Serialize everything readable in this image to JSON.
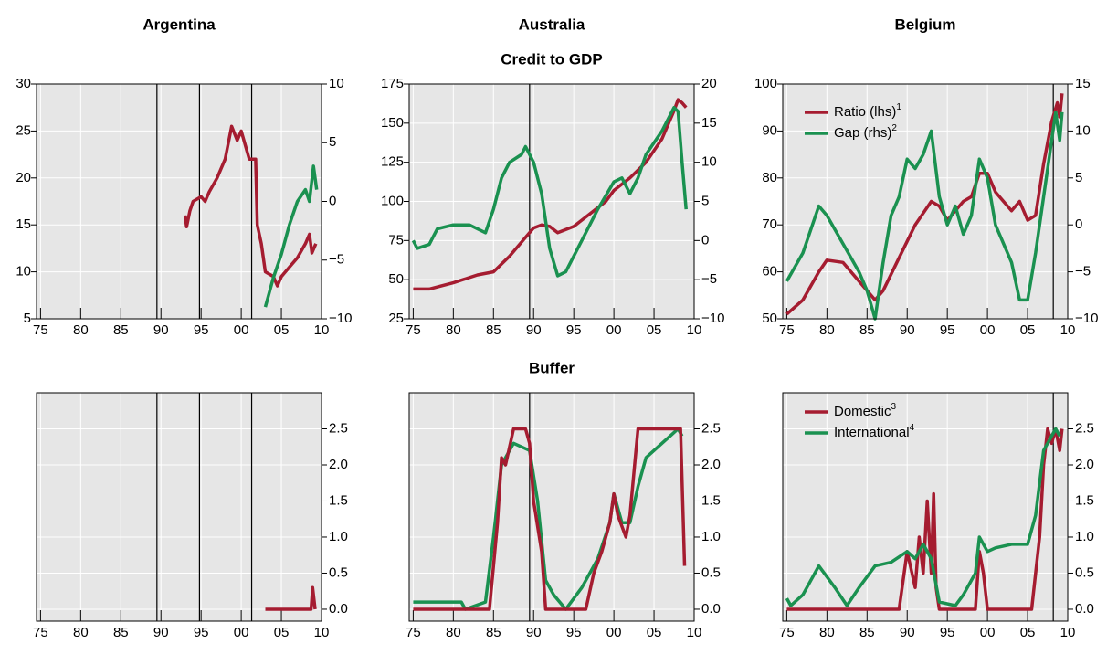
{
  "chart_data": [
    {
      "type": "line",
      "title": "Argentina",
      "xlim": [
        1974.5,
        2010
      ],
      "xticks": [
        {
          "value": 1975,
          "label": "75"
        },
        {
          "value": 1980,
          "label": "80"
        },
        {
          "value": 1985,
          "label": "85"
        },
        {
          "value": 1990,
          "label": "90"
        },
        {
          "value": 1995,
          "label": "95"
        },
        {
          "value": 2000,
          "label": "00"
        },
        {
          "value": 2005,
          "label": "05"
        },
        {
          "value": 2010,
          "label": "10"
        }
      ],
      "ylim": [
        5,
        30
      ],
      "yticks": [
        5,
        10,
        15,
        20,
        25,
        30
      ],
      "y2lim": [
        -10,
        10
      ],
      "y2ticks": [
        {
          "value": -10,
          "label": "−10"
        },
        {
          "value": -5,
          "label": "−5"
        },
        0,
        5,
        10
      ],
      "vlines": [
        1989.5,
        1994.8,
        2001.3
      ],
      "series": [
        {
          "color": "#a51c30",
          "x": [
            1993,
            1993.2,
            1993.6,
            1994,
            1995,
            1995.5,
            1996,
            1997,
            1998,
            1998.8,
            1999.5,
            2000,
            2001,
            2001.8,
            2002,
            2002.5,
            2003,
            2004,
            2004.5,
            2005,
            2006,
            2007,
            2008,
            2008.5,
            2008.8,
            2009.3
          ],
          "values": [
            16,
            14.8,
            16.5,
            17.5,
            18,
            17.5,
            18.5,
            20,
            22,
            25.5,
            24,
            25,
            22,
            22,
            15,
            13,
            10,
            9.5,
            8.5,
            9.5,
            10.5,
            11.5,
            13,
            14,
            12,
            13
          ]
        },
        {
          "color": "#1a9150",
          "axis": "y2",
          "x": [
            2003,
            2004,
            2005,
            2006,
            2007,
            2008,
            2008.5,
            2009,
            2009.4
          ],
          "values": [
            -9,
            -6.5,
            -4.5,
            -2,
            0,
            1,
            0,
            3,
            1
          ]
        }
      ]
    },
    {
      "type": "line",
      "title": "Australia",
      "section": "Credit to GDP",
      "xlim": [
        1974.5,
        2010
      ],
      "xticks": [
        {
          "value": 1975,
          "label": "75"
        },
        {
          "value": 1980,
          "label": "80"
        },
        {
          "value": 1985,
          "label": "85"
        },
        {
          "value": 1990,
          "label": "90"
        },
        {
          "value": 1995,
          "label": "95"
        },
        {
          "value": 2000,
          "label": "00"
        },
        {
          "value": 2005,
          "label": "05"
        },
        {
          "value": 2010,
          "label": "10"
        }
      ],
      "ylim": [
        25,
        175
      ],
      "yticks": [
        25,
        50,
        75,
        100,
        125,
        150,
        175
      ],
      "y2lim": [
        -10,
        20
      ],
      "y2ticks": [
        {
          "value": -10,
          "label": "−10"
        },
        {
          "value": -5,
          "label": "−5"
        },
        0,
        5,
        10,
        15,
        20
      ],
      "vlines": [
        1989.5
      ],
      "series": [
        {
          "color": "#a51c30",
          "x": [
            1975,
            1977,
            1980,
            1983,
            1985,
            1987,
            1989,
            1990,
            1991,
            1992,
            1993,
            1995,
            1997,
            1999,
            2000,
            2002,
            2004,
            2006,
            2007.5,
            2008,
            2008.5,
            2009
          ],
          "values": [
            44,
            44,
            48,
            53,
            55,
            65,
            77,
            83,
            85,
            84,
            80,
            84,
            92,
            100,
            107,
            115,
            125,
            140,
            158,
            165,
            163,
            160
          ]
        },
        {
          "color": "#1a9150",
          "axis": "y2",
          "x": [
            1975,
            1975.5,
            1977,
            1978,
            1980,
            1982,
            1984,
            1985,
            1986,
            1987,
            1988.5,
            1989,
            1990,
            1991,
            1992,
            1993,
            1994,
            1996,
            1998,
            2000,
            2001,
            2002,
            2003,
            2004,
            2006,
            2007.5,
            2008,
            2008.5,
            2009
          ],
          "values": [
            0,
            -1,
            -0.5,
            1.5,
            2,
            2,
            1,
            4,
            8,
            10,
            11,
            12,
            10,
            6,
            -1,
            -4.5,
            -4,
            0,
            4,
            7.5,
            8,
            6,
            8,
            11,
            14,
            17,
            16.5,
            10,
            4
          ]
        }
      ]
    },
    {
      "type": "line",
      "title": "Belgium",
      "xlim": [
        1974.5,
        2010
      ],
      "legend": true,
      "xticks": [
        {
          "value": 1975,
          "label": "75"
        },
        {
          "value": 1980,
          "label": "80"
        },
        {
          "value": 1985,
          "label": "85"
        },
        {
          "value": 1990,
          "label": "90"
        },
        {
          "value": 1995,
          "label": "95"
        },
        {
          "value": 2000,
          "label": "00"
        },
        {
          "value": 2005,
          "label": "05"
        },
        {
          "value": 2010,
          "label": "10"
        }
      ],
      "ylim": [
        50,
        100
      ],
      "yticks": [
        50,
        60,
        70,
        80,
        90,
        100
      ],
      "y2lim": [
        -10,
        15
      ],
      "y2ticks": [
        {
          "value": -10,
          "label": "−10"
        },
        {
          "value": -5,
          "label": "−5"
        },
        0,
        5,
        10,
        15
      ],
      "vlines": [
        2008.2
      ],
      "series": [
        {
          "name": "Ratio (lhs)",
          "note": "1",
          "color": "#a51c30",
          "x": [
            1975,
            1977,
            1979,
            1980,
            1982,
            1984,
            1986,
            1987,
            1989,
            1991,
            1993,
            1994,
            1995,
            1996,
            1997,
            1998,
            1999,
            2000,
            2001,
            2003,
            2004,
            2005,
            2006,
            2007,
            2008,
            2008.7,
            2009,
            2009.3
          ],
          "values": [
            51,
            54,
            60,
            62.5,
            62,
            58,
            54,
            56,
            63,
            70,
            75,
            74,
            71,
            73,
            75,
            76,
            81,
            81,
            77,
            73,
            75,
            71,
            72,
            83,
            92,
            96,
            93,
            98
          ]
        },
        {
          "name": "Gap (rhs)",
          "note": "2",
          "color": "#1a9150",
          "axis": "y2",
          "x": [
            1975,
            1977,
            1979,
            1980,
            1982,
            1984,
            1985,
            1986,
            1987,
            1988,
            1989,
            1990,
            1991,
            1992,
            1993,
            1994,
            1995,
            1996,
            1997,
            1998,
            1999,
            2000,
            2001,
            2003,
            2004,
            2005,
            2006,
            2007,
            2008,
            2008.5,
            2009,
            2009.3
          ],
          "values": [
            -6,
            -3,
            2,
            1,
            -2,
            -5,
            -7,
            -10,
            -4,
            1,
            3,
            7,
            6,
            7.5,
            10,
            3,
            0,
            2,
            -1,
            1,
            7,
            5,
            0,
            -4,
            -8,
            -8,
            -3,
            3,
            9,
            12,
            9,
            12
          ]
        }
      ]
    },
    {
      "type": "line",
      "xlim": [
        1974.5,
        2010
      ],
      "xticks": [
        {
          "value": 1975,
          "label": "75"
        },
        {
          "value": 1980,
          "label": "80"
        },
        {
          "value": 1985,
          "label": "85"
        },
        {
          "value": 1990,
          "label": "90"
        },
        {
          "value": 1995,
          "label": "95"
        },
        {
          "value": 2000,
          "label": "00"
        },
        {
          "value": 2005,
          "label": "05"
        },
        {
          "value": 2010,
          "label": "10"
        }
      ],
      "y2lim": [
        -0.165,
        3.0
      ],
      "y2ticks": [
        {
          "value": 0,
          "label": "0.0"
        },
        0.5,
        {
          "value": 1,
          "label": "1.0"
        },
        1.5,
        {
          "value": 2,
          "label": "2.0"
        },
        2.5
      ],
      "vlines": [
        1989.5,
        1994.8,
        2001.3
      ],
      "series": [
        {
          "color": "#a51c30",
          "axis": "y2",
          "x": [
            2003,
            2008.7,
            2008.9,
            2009.2
          ],
          "values": [
            0,
            0,
            0.3,
            0
          ]
        }
      ]
    },
    {
      "type": "line",
      "section": "Buffer",
      "xlim": [
        1974.5,
        2010
      ],
      "xticks": [
        {
          "value": 1975,
          "label": "75"
        },
        {
          "value": 1980,
          "label": "80"
        },
        {
          "value": 1985,
          "label": "85"
        },
        {
          "value": 1990,
          "label": "90"
        },
        {
          "value": 1995,
          "label": "95"
        },
        {
          "value": 2000,
          "label": "00"
        },
        {
          "value": 2005,
          "label": "05"
        },
        {
          "value": 2010,
          "label": "10"
        }
      ],
      "y2lim": [
        -0.165,
        3.0
      ],
      "y2ticks": [
        {
          "value": 0,
          "label": "0.0"
        },
        0.5,
        {
          "value": 1,
          "label": "1.0"
        },
        1.5,
        {
          "value": 2,
          "label": "2.0"
        },
        2.5
      ],
      "vlines": [
        1989.5
      ],
      "series": [
        {
          "color": "#1a9150",
          "axis": "y2",
          "x": [
            1975,
            1981,
            1981.5,
            1984,
            1985,
            1986,
            1987.5,
            1989.5,
            1990.5,
            1991.5,
            1992.5,
            1994,
            1996,
            1998,
            1999.5,
            2000,
            2001,
            2002,
            2003,
            2004,
            2006,
            2007,
            2008,
            2008.5
          ],
          "values": [
            0.1,
            0.1,
            0,
            0.1,
            1.0,
            2.0,
            2.3,
            2.2,
            1.5,
            0.4,
            0.2,
            0,
            0.3,
            0.7,
            1.2,
            1.6,
            1.2,
            1.2,
            1.7,
            2.1,
            2.3,
            2.4,
            2.5,
            2.4
          ]
        },
        {
          "color": "#a51c30",
          "axis": "y2",
          "x": [
            1975,
            1984.5,
            1985.5,
            1986,
            1986.5,
            1987.5,
            1989,
            1989.5,
            1990,
            1991,
            1991.5,
            1996.5,
            1997.5,
            1998.5,
            1999.5,
            2000,
            2000.5,
            2001.5,
            2002,
            2003,
            2008.3,
            2008.8
          ],
          "values": [
            0,
            0,
            1.2,
            2.1,
            2.0,
            2.5,
            2.5,
            2.3,
            1.5,
            0.8,
            0,
            0,
            0.5,
            0.8,
            1.2,
            1.6,
            1.3,
            1.0,
            1.3,
            2.5,
            2.5,
            0.6
          ]
        }
      ]
    },
    {
      "type": "line",
      "xlim": [
        1974.5,
        2010
      ],
      "legend": true,
      "xticks": [
        {
          "value": 1975,
          "label": "75"
        },
        {
          "value": 1980,
          "label": "80"
        },
        {
          "value": 1985,
          "label": "85"
        },
        {
          "value": 1990,
          "label": "90"
        },
        {
          "value": 1995,
          "label": "95"
        },
        {
          "value": 2000,
          "label": "00"
        },
        {
          "value": 2005,
          "label": "05"
        },
        {
          "value": 2010,
          "label": "10"
        }
      ],
      "y2lim": [
        -0.165,
        3.0
      ],
      "y2ticks": [
        {
          "value": 0,
          "label": "0.0"
        },
        0.5,
        {
          "value": 1,
          "label": "1.0"
        },
        1.5,
        {
          "value": 2,
          "label": "2.0"
        },
        2.5
      ],
      "vlines": [
        2008.2
      ],
      "series": [
        {
          "name": "Domestic",
          "note": "3",
          "color": "#a51c30",
          "axis": "y2",
          "x": [
            1975,
            1989,
            1990,
            1991,
            1991.5,
            1992,
            1992.5,
            1993,
            1993.3,
            1993.6,
            1994,
            1998.5,
            1999,
            1999.5,
            2000,
            2005.5,
            2006.5,
            2007,
            2007.5,
            2008,
            2008.5,
            2009,
            2009.3
          ],
          "values": [
            0,
            0,
            0.8,
            0.3,
            1.0,
            0.5,
            1.5,
            0.5,
            1.6,
            0.3,
            0,
            0,
            0.8,
            0.5,
            0,
            0,
            1.0,
            2.0,
            2.5,
            2.3,
            2.5,
            2.2,
            2.5
          ]
        },
        {
          "name": "International",
          "note": "4",
          "color": "#1a9150",
          "axis": "y2",
          "x": [
            1975,
            1975.5,
            1977,
            1979,
            1981,
            1982.5,
            1984,
            1986,
            1988,
            1990,
            1991,
            1992,
            1993,
            1994,
            1996,
            1997,
            1998.5,
            1999,
            2000,
            2001,
            2003,
            2005,
            2006,
            2007,
            2008,
            2008.5,
            2009
          ],
          "values": [
            0.15,
            0.05,
            0.2,
            0.6,
            0.3,
            0.05,
            0.3,
            0.6,
            0.65,
            0.8,
            0.7,
            0.9,
            0.7,
            0.1,
            0.05,
            0.2,
            0.5,
            1.0,
            0.8,
            0.85,
            0.9,
            0.9,
            1.3,
            2.2,
            2.4,
            2.5,
            2.4
          ]
        }
      ]
    }
  ]
}
